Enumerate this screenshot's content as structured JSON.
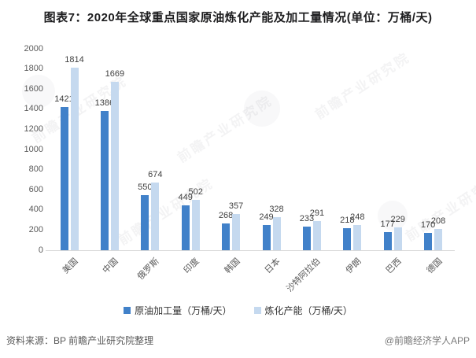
{
  "title": "图表7：2020年全球重点国家原油炼化产能及加工量情况(单位：万桶/天)",
  "chart_data": {
    "type": "bar",
    "categories": [
      "美国",
      "中国",
      "俄罗斯",
      "印度",
      "韩国",
      "日本",
      "沙特阿拉伯",
      "伊朗",
      "巴西",
      "德国"
    ],
    "series": [
      {
        "name": "原油加工量（万桶/天）",
        "color": "#4181c9",
        "values": [
          1421,
          1386,
          550,
          449,
          268,
          249,
          233,
          218,
          177,
          170
        ]
      },
      {
        "name": "炼化产能（万桶/天）",
        "color": "#c5d9ef",
        "values": [
          1814,
          1669,
          674,
          502,
          357,
          328,
          291,
          248,
          229,
          208
        ]
      }
    ],
    "ylim": [
      0,
      2000
    ],
    "ytick_step": 200,
    "grid": false,
    "legend_position": "bottom",
    "value_labels": true
  },
  "footer": {
    "source": "资料来源：BP 前瞻产业研究院整理",
    "credit": "@前瞻经济学人APP"
  },
  "watermark": {
    "text": "前瞻产业研究院"
  },
  "colors": {
    "series1": "#4181c9",
    "series2": "#c5d9ef",
    "axis_line": "#d9d9d9",
    "title_text": "#1d1d1f",
    "tick_text": "#595959"
  }
}
